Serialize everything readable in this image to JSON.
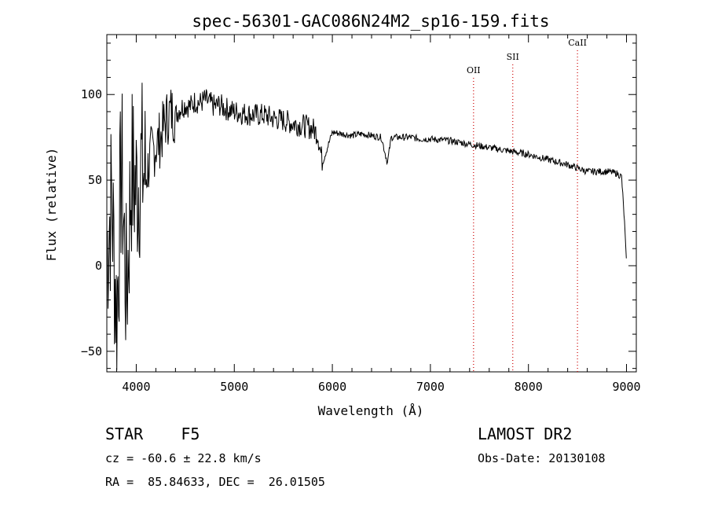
{
  "chart_data": {
    "type": "line",
    "title": "spec-56301-GAC086N24M2_sp16-159.fits",
    "xlabel": "Wavelength (Å)",
    "ylabel": "Flux (relative)",
    "xlim": [
      3700,
      9100
    ],
    "ylim": [
      -62,
      135
    ],
    "x_ticks": [
      4000,
      5000,
      6000,
      7000,
      8000,
      9000
    ],
    "y_ticks": [
      -50,
      0,
      50,
      100
    ],
    "x_minor_step": 200,
    "y_minor_step": 10,
    "line_color": "#000000",
    "marker_color": "#cc0000",
    "series": [
      {
        "x": [
          3700,
          3750,
          3800,
          3850,
          3900,
          3950,
          4000,
          4050,
          4100,
          4150,
          4200,
          4250,
          4300,
          4350,
          4400,
          4450,
          4500,
          4550,
          4600,
          4650,
          4700,
          4750,
          4800,
          4850,
          4900,
          4950,
          5000,
          5100,
          5200,
          5300,
          5400,
          5500,
          5600,
          5700,
          5800,
          5850,
          5900,
          6000,
          6100,
          6200,
          6300,
          6400,
          6500,
          6562,
          6600,
          6700,
          6800,
          6900,
          7000,
          7200,
          7400,
          7600,
          7800,
          8000,
          8200,
          8400,
          8500,
          8600,
          8700,
          8800,
          8900,
          8950,
          8980,
          9000
        ],
        "y": [
          10,
          40,
          -30,
          60,
          -20,
          55,
          45,
          58,
          52,
          65,
          70,
          75,
          85,
          90,
          88,
          92,
          94,
          93,
          96,
          95,
          97,
          95,
          93,
          94,
          92,
          91,
          90,
          89,
          88,
          88,
          86,
          85,
          83,
          82,
          80,
          77,
          60,
          78,
          77,
          76,
          77,
          76,
          75,
          60,
          75,
          75,
          75,
          74,
          74,
          73,
          71,
          69,
          67,
          65,
          62,
          59,
          57,
          55,
          55,
          55,
          54,
          52,
          25,
          0
        ]
      }
    ],
    "lines": [
      {
        "label": "OII",
        "x": 7440
      },
      {
        "label": "SII",
        "x": 7840
      },
      {
        "label": "CaII",
        "x": 8500
      }
    ]
  },
  "info": {
    "object_class": "STAR    F5",
    "survey": "LAMOST DR2",
    "cz": "cz = -60.6 ± 22.8 km/s",
    "obs_date": "Obs-Date: 20130108",
    "radec": "RA =  85.84633, DEC =  26.01505"
  }
}
